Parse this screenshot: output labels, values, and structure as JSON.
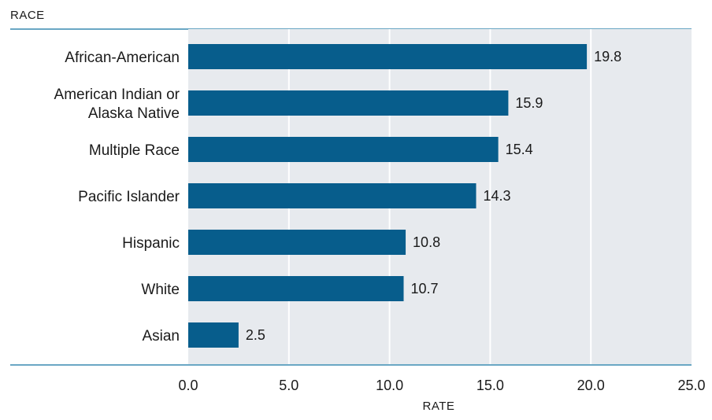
{
  "chart_data": {
    "type": "bar",
    "orientation": "horizontal",
    "categories": [
      "African-American",
      "American Indian or Alaska Native",
      "Multiple Race",
      "Pacific Islander",
      "Hispanic",
      "White",
      "Asian"
    ],
    "category_label_lines": [
      [
        "African-American"
      ],
      [
        "American Indian or",
        "Alaska Native"
      ],
      [
        "Multiple Race"
      ],
      [
        "Pacific Islander"
      ],
      [
        "Hispanic"
      ],
      [
        "White"
      ],
      [
        "Asian"
      ]
    ],
    "values": [
      19.8,
      15.9,
      15.4,
      14.3,
      10.8,
      10.7,
      2.5
    ],
    "value_labels": [
      "19.8",
      "15.9",
      "15.4",
      "14.3",
      "10.8",
      "10.7",
      "2.5"
    ],
    "xlim": [
      0,
      25
    ],
    "xticks": [
      0,
      5,
      10,
      15,
      20,
      25
    ],
    "xtick_labels": [
      "0.0",
      "5.0",
      "10.0",
      "15.0",
      "20.0",
      "25.0"
    ],
    "xlabel": "RATE",
    "ylabel": "RACE",
    "title": "",
    "grid": "vertical",
    "legend": "none"
  },
  "colors": {
    "bar": "#075d8c",
    "plot_background": "#e7eaee",
    "gridline": "#ffffff",
    "rule": "#6aa7c4",
    "text": "#1a1a1a"
  }
}
